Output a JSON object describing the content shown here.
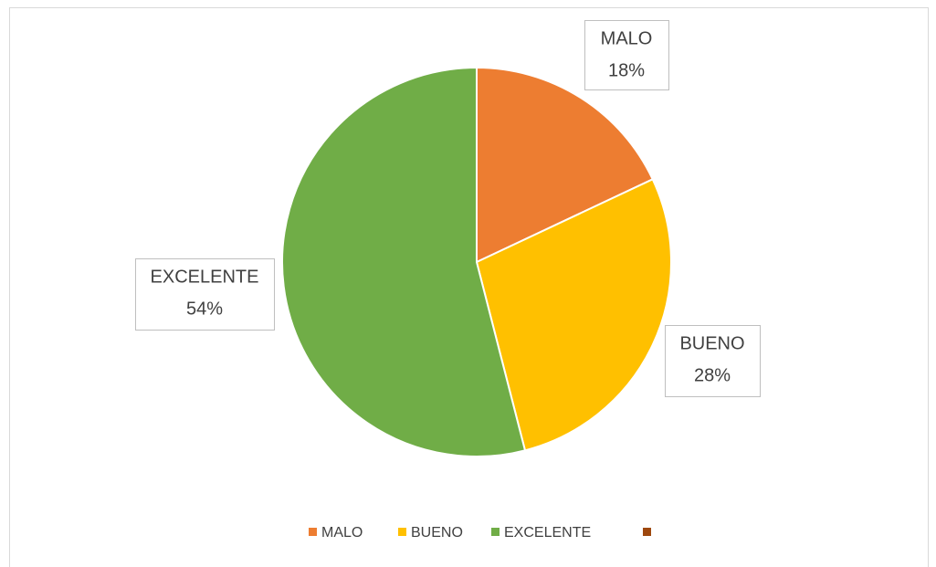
{
  "chart_data": {
    "type": "pie",
    "categories": [
      "MALO",
      "BUENO",
      "EXCELENTE",
      null
    ],
    "values": [
      18,
      28,
      54,
      0
    ],
    "value_labels": [
      "18%",
      "28%",
      "54%",
      null
    ],
    "colors": [
      "#ED7D31",
      "#FFC000",
      "#70AD47",
      "#9E480E"
    ],
    "legend": "bottom"
  }
}
